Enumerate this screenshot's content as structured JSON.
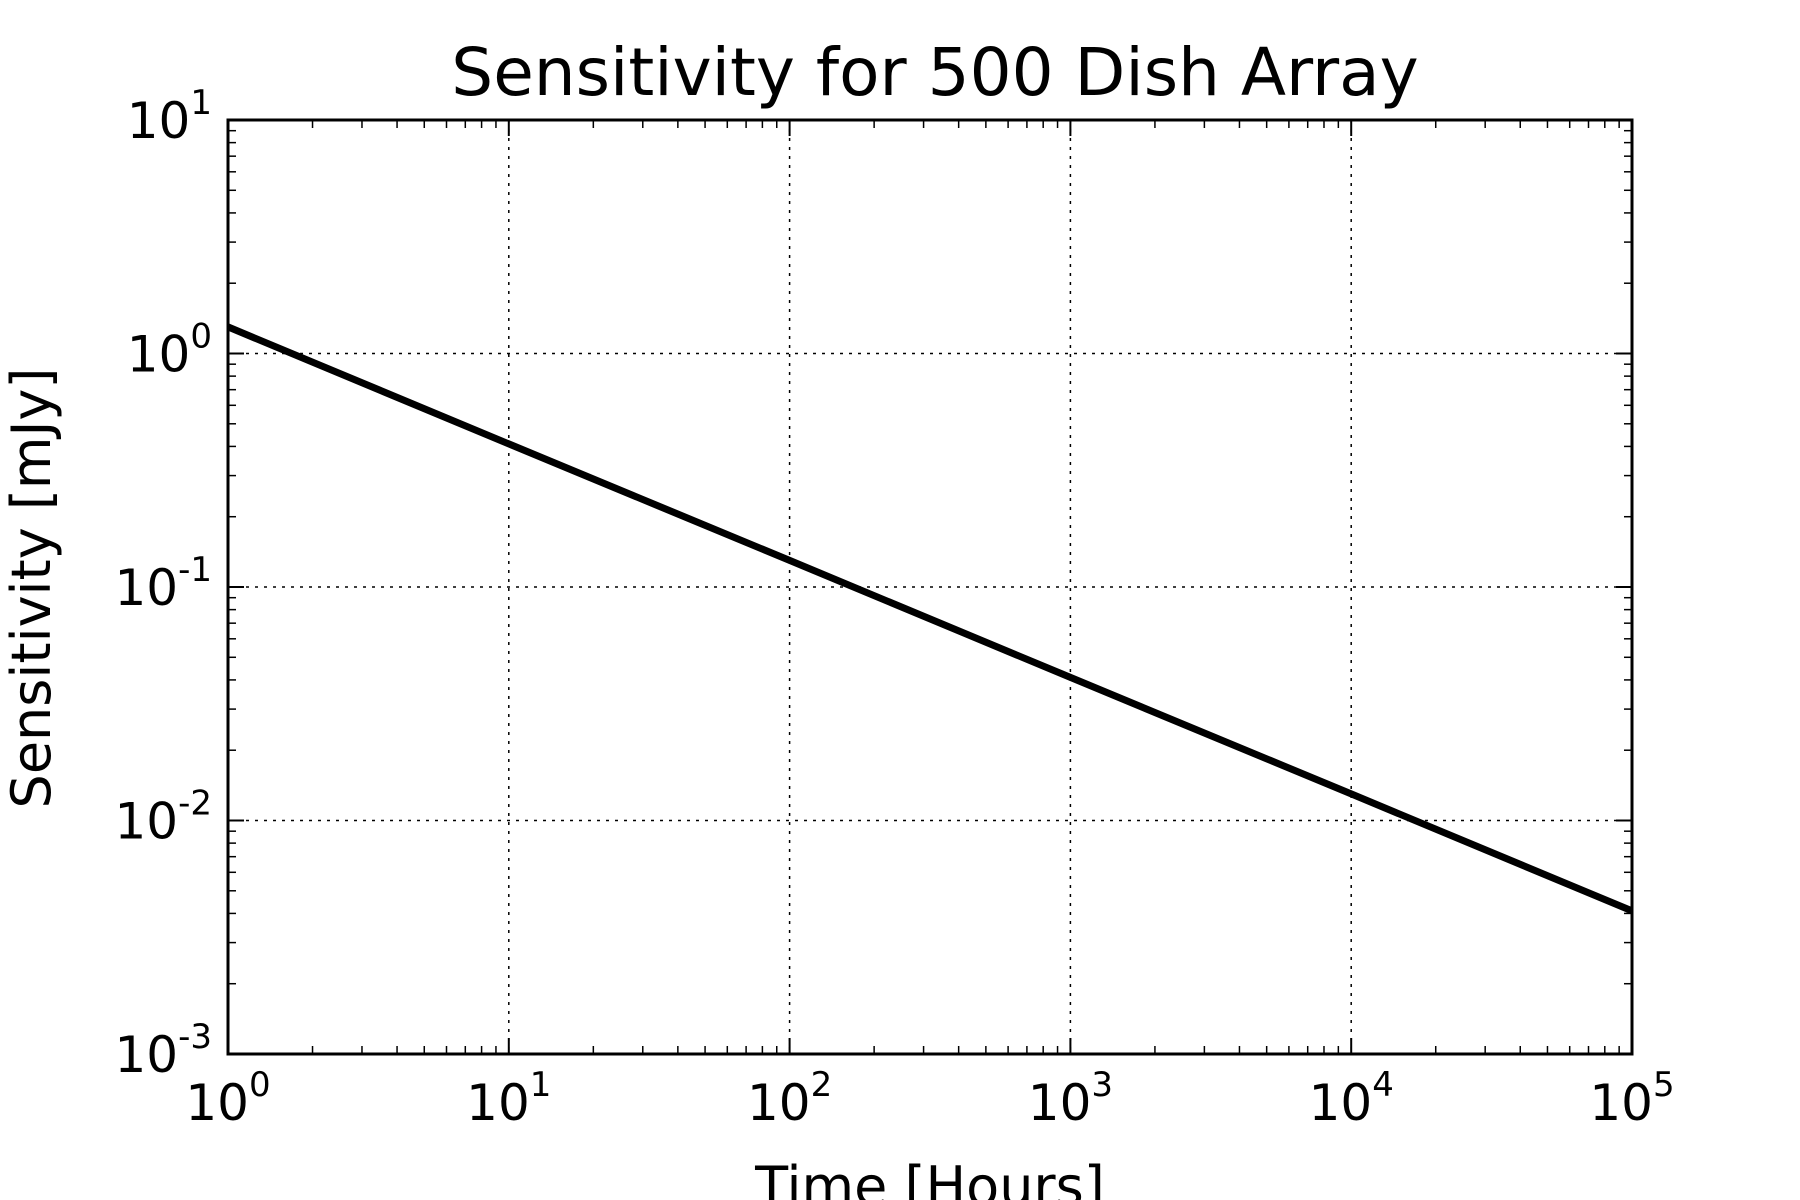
{
  "chart_data": {
    "type": "line",
    "title": "Sensitivity for 500 Dish Array",
    "xlabel": "Time [Hours]",
    "ylabel": "Sensitivity [mJy]",
    "xscale": "log",
    "yscale": "log",
    "xlim": [
      1,
      100000
    ],
    "ylim": [
      0.001,
      10
    ],
    "grid": true,
    "x_ticks": [
      {
        "base": "10",
        "exp": "0",
        "value": 1
      },
      {
        "base": "10",
        "exp": "1",
        "value": 10
      },
      {
        "base": "10",
        "exp": "2",
        "value": 100
      },
      {
        "base": "10",
        "exp": "3",
        "value": 1000
      },
      {
        "base": "10",
        "exp": "4",
        "value": 10000
      },
      {
        "base": "10",
        "exp": "5",
        "value": 100000
      }
    ],
    "y_ticks": [
      {
        "base": "10",
        "exp": "-3",
        "value": 0.001
      },
      {
        "base": "10",
        "exp": "-2",
        "value": 0.01
      },
      {
        "base": "10",
        "exp": "-1",
        "value": 0.1
      },
      {
        "base": "10",
        "exp": "0",
        "value": 1
      },
      {
        "base": "10",
        "exp": "1",
        "value": 10
      }
    ],
    "series": [
      {
        "color": "#000000",
        "x": [
          1,
          10,
          100,
          1000,
          10000,
          100000
        ],
        "y": [
          1.3,
          0.41,
          0.13,
          0.041,
          0.013,
          0.0041
        ]
      }
    ]
  }
}
